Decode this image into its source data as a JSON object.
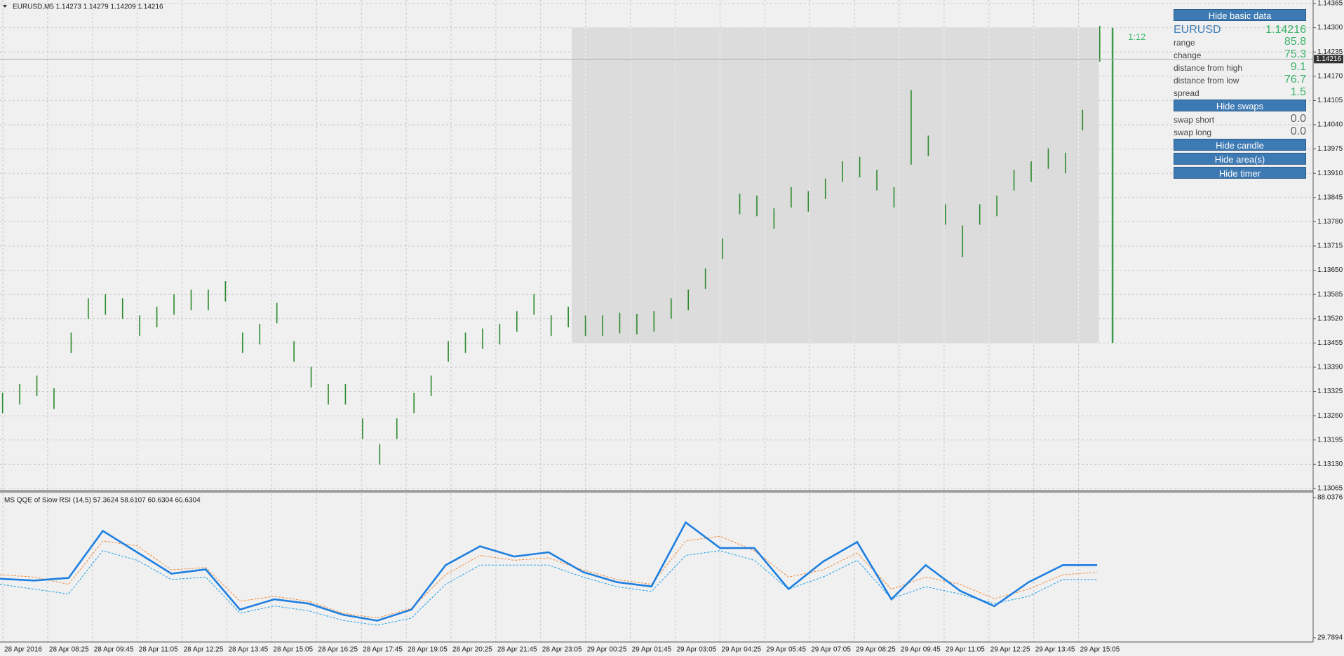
{
  "header": {
    "title": "EURUSD,M5  1.14273 1.14279 1.14209 1.14216"
  },
  "chart_data": [
    {
      "type": "ohlc",
      "high": [
        1.13321,
        1.13345,
        1.13368,
        1.13334,
        1.13483,
        1.13575,
        1.13586,
        1.13575,
        1.13529,
        1.13552,
        1.13586,
        1.13598,
        1.13598,
        1.13621,
        1.13483,
        1.13506,
        1.13563,
        1.1346,
        1.13391,
        1.13345,
        1.13345,
        1.13253,
        1.13184,
        1.13253,
        1.13321,
        1.13368,
        1.1346,
        1.13483,
        1.13494,
        1.13506,
        1.1354,
        1.13586,
        1.13529,
        1.13552,
        1.13529,
        1.13529,
        1.13536,
        1.13533,
        1.1354,
        1.13575,
        1.13598,
        1.13655,
        1.13735,
        1.13855,
        1.1385,
        1.13816,
        1.13873,
        1.13862,
        1.13896,
        1.13942,
        1.13954,
        1.13919,
        1.13873,
        1.14133,
        1.14011,
        1.13827,
        1.1377,
        1.13827,
        1.1385,
        1.13919,
        1.13942,
        1.13977,
        1.13965,
        1.1408,
        1.14305
      ],
      "low": [
        1.13267,
        1.1329,
        1.13313,
        1.13278,
        1.13428,
        1.1352,
        1.13531,
        1.1352,
        1.13474,
        1.13497,
        1.13531,
        1.13543,
        1.13543,
        1.13566,
        1.13428,
        1.13451,
        1.13508,
        1.13405,
        1.13336,
        1.1329,
        1.1329,
        1.13198,
        1.13129,
        1.13198,
        1.13267,
        1.13313,
        1.13405,
        1.13428,
        1.13439,
        1.13451,
        1.13485,
        1.13531,
        1.13474,
        1.13497,
        1.13474,
        1.13474,
        1.13481,
        1.13478,
        1.13485,
        1.1352,
        1.13543,
        1.136,
        1.1368,
        1.138,
        1.13795,
        1.13761,
        1.13818,
        1.13807,
        1.13841,
        1.13887,
        1.13899,
        1.13864,
        1.13818,
        1.13933,
        1.13956,
        1.13772,
        1.13685,
        1.13772,
        1.13795,
        1.13864,
        1.13887,
        1.13922,
        1.1391,
        1.14025,
        1.14209
      ],
      "color": "#2a8a2a",
      "ylim": [
        1.13065,
        1.14365
      ],
      "yticks": [
        1.13065,
        {
          "value": 1.1313,
          "label": "1.13130"
        },
        1.13195,
        {
          "value": 1.1326,
          "label": "1.13260"
        },
        1.13325,
        {
          "value": 1.1339,
          "label": "1.13390"
        },
        1.13455,
        {
          "value": 1.1352,
          "label": "1.13520"
        },
        1.13585,
        {
          "value": 1.1365,
          "label": "1.13650"
        },
        1.13715,
        {
          "value": 1.1378,
          "label": "1.13780"
        },
        1.13845,
        {
          "value": 1.1391,
          "label": "1.13910"
        },
        1.13975,
        {
          "value": 1.1404,
          "label": "1.14040"
        },
        1.14105,
        {
          "value": 1.1417,
          "label": "1.14170"
        },
        1.14235,
        {
          "value": 1.143,
          "label": "1.14300"
        },
        1.14365
      ],
      "current_price": 1.14216,
      "range_box": {
        "high": 1.143,
        "low": 1.13455,
        "color": "#dcdcdc"
      },
      "timer": "1:12",
      "grid": true,
      "time_labels": [
        "28 Apr 2016",
        "28 Apr 08:25",
        "28 Apr 09:45",
        "28 Apr 11:05",
        "28 Apr 12:25",
        "28 Apr 13:45",
        "28 Apr 15:05",
        "28 Apr 16:25",
        "28 Apr 17:45",
        "28 Apr 19:05",
        "28 Apr 20:25",
        "28 Apr 21:45",
        "28 Apr 23:05",
        "29 Apr 00:25",
        "29 Apr 01:45",
        "29 Apr 03:05",
        "29 Apr 04:25",
        "29 Apr 05:45",
        "29 Apr 07:05",
        "29 Apr 08:25",
        "29 Apr 09:45",
        "29 Apr 11:05",
        "29 Apr 12:25",
        "29 Apr 13:45",
        "29 Apr 15:05"
      ]
    },
    {
      "type": "line",
      "title": "MS QQE of Slow RSI (14,5) 57.3624 58.6107 60.6304 60.6304",
      "ylim": [
        29.7894,
        88.0376
      ],
      "yticks": [
        29.7894,
        88.0376
      ],
      "series": [
        {
          "color": "#f08a3c",
          "dash": true,
          "values": [
            56,
            55,
            52,
            70,
            68,
            58,
            59,
            45,
            47,
            45,
            40,
            38,
            42,
            56,
            64,
            62,
            63,
            58,
            54,
            52,
            70,
            72,
            66,
            55,
            58,
            65,
            50,
            55,
            52,
            46,
            50,
            56,
            57
          ]
        },
        {
          "color": "#1aa0e8",
          "dash": true,
          "values": [
            52,
            50,
            48,
            66,
            62,
            54,
            55,
            40,
            43,
            41,
            37,
            35,
            38,
            52,
            60,
            60,
            60,
            55,
            51,
            49,
            64,
            66,
            62,
            50,
            55,
            62,
            46,
            51,
            48,
            44,
            47,
            54,
            54
          ]
        },
        {
          "color": "#1e7fe0",
          "dash": false,
          "values": [
            54.3,
            53.59,
            54.65,
            74.19,
            65.31,
            56.43,
            58.21,
            41.51,
            45.77,
            44,
            39.38,
            36.9,
            41.51,
            59.98,
            67.8,
            63.53,
            65.31,
            57.14,
            52.88,
            51.1,
            77.74,
            67.09,
            67.09,
            50.04,
            61.4,
            69.57,
            45.77,
            59.98,
            49.33,
            42.93,
            52.88,
            59.98,
            59.98
          ]
        }
      ]
    }
  ],
  "panel": {
    "buttons": [
      "Hide basic data",
      "Hide swaps",
      "Hide candle",
      "Hide area(s)",
      "Hide timer"
    ],
    "symbol": "EURUSD",
    "price": "1.14216",
    "rows": [
      [
        "range",
        "85.8"
      ],
      [
        "change",
        "75.3"
      ],
      [
        "distance from high",
        "9.1"
      ],
      [
        "distance from low",
        "76.7"
      ],
      [
        "spread",
        "1.5"
      ]
    ],
    "swaps": [
      [
        "swap short",
        "0.0"
      ],
      [
        "swap long",
        "0.0"
      ]
    ]
  }
}
